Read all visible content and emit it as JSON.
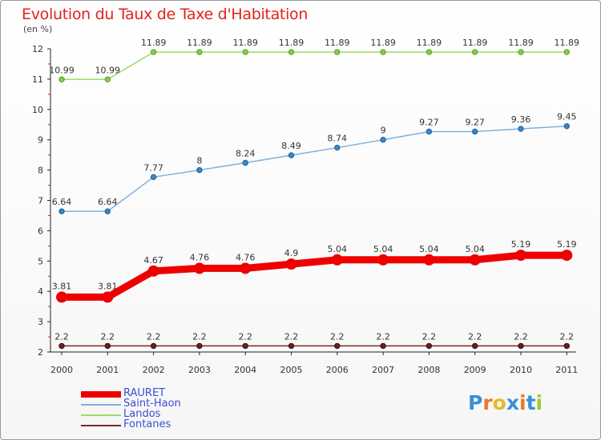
{
  "header": {
    "title": "Evolution du Taux de Taxe d'Habitation",
    "unit_note": "(en %)"
  },
  "chart_data": {
    "type": "line",
    "title": "Evolution du Taux de Taxe d'Habitation",
    "ylabel": "(en %)",
    "xlabel": "",
    "categories": [
      "2000",
      "2001",
      "2002",
      "2003",
      "2004",
      "2005",
      "2006",
      "2007",
      "2008",
      "2009",
      "2010",
      "2011"
    ],
    "ylim": [
      2,
      12
    ],
    "yticks": [
      2,
      3,
      4,
      5,
      6,
      7,
      8,
      9,
      10,
      11,
      12
    ],
    "grid": false,
    "legend_position": "bottom-left",
    "series": [
      {
        "name": "RAURET",
        "color": "#ee0000",
        "values": [
          3.81,
          3.81,
          4.67,
          4.76,
          4.76,
          4.9,
          5.04,
          5.04,
          5.04,
          5.04,
          5.19,
          5.19
        ],
        "labels": [
          "3.81",
          "3.81",
          "4.67",
          "4.76",
          "4.76",
          "4.9",
          "5.04",
          "5.04",
          "5.04",
          "5.04",
          "5.19",
          "5.19"
        ]
      },
      {
        "name": "Saint-Haon",
        "color": "#7fb0dd",
        "values": [
          6.64,
          6.64,
          7.77,
          8,
          8.24,
          8.49,
          8.74,
          9,
          9.27,
          9.27,
          9.36,
          9.45
        ],
        "labels": [
          "6.64",
          "6.64",
          "7.77",
          "8",
          "8.24",
          "8.49",
          "8.74",
          "9",
          "9.27",
          "9.27",
          "9.36",
          "9.45"
        ]
      },
      {
        "name": "Landos",
        "color": "#99dd66",
        "values": [
          10.99,
          10.99,
          11.89,
          11.89,
          11.89,
          11.89,
          11.89,
          11.89,
          11.89,
          11.89,
          11.89,
          11.89
        ],
        "labels": [
          "10.99",
          "10.99",
          "11.89",
          "11.89",
          "11.89",
          "11.89",
          "11.89",
          "11.89",
          "11.89",
          "11.89",
          "11.89",
          "11.89"
        ]
      },
      {
        "name": "Fontanes",
        "color": "#7a2a2a",
        "values": [
          2.2,
          2.2,
          2.2,
          2.2,
          2.2,
          2.2,
          2.2,
          2.2,
          2.2,
          2.2,
          2.2,
          2.2
        ],
        "labels": [
          "2.2",
          "2.2",
          "2.2",
          "2.2",
          "2.2",
          "2.2",
          "2.2",
          "2.2",
          "2.2",
          "2.2",
          "2.2",
          "2.2"
        ]
      }
    ]
  },
  "logo": {
    "text": "Proxiti",
    "letter_colors": [
      "#3a8fd6",
      "#e8792a",
      "#e8b92a",
      "#3a8fd6",
      "#e8792a",
      "#3a8fd6",
      "#9acd32"
    ]
  }
}
